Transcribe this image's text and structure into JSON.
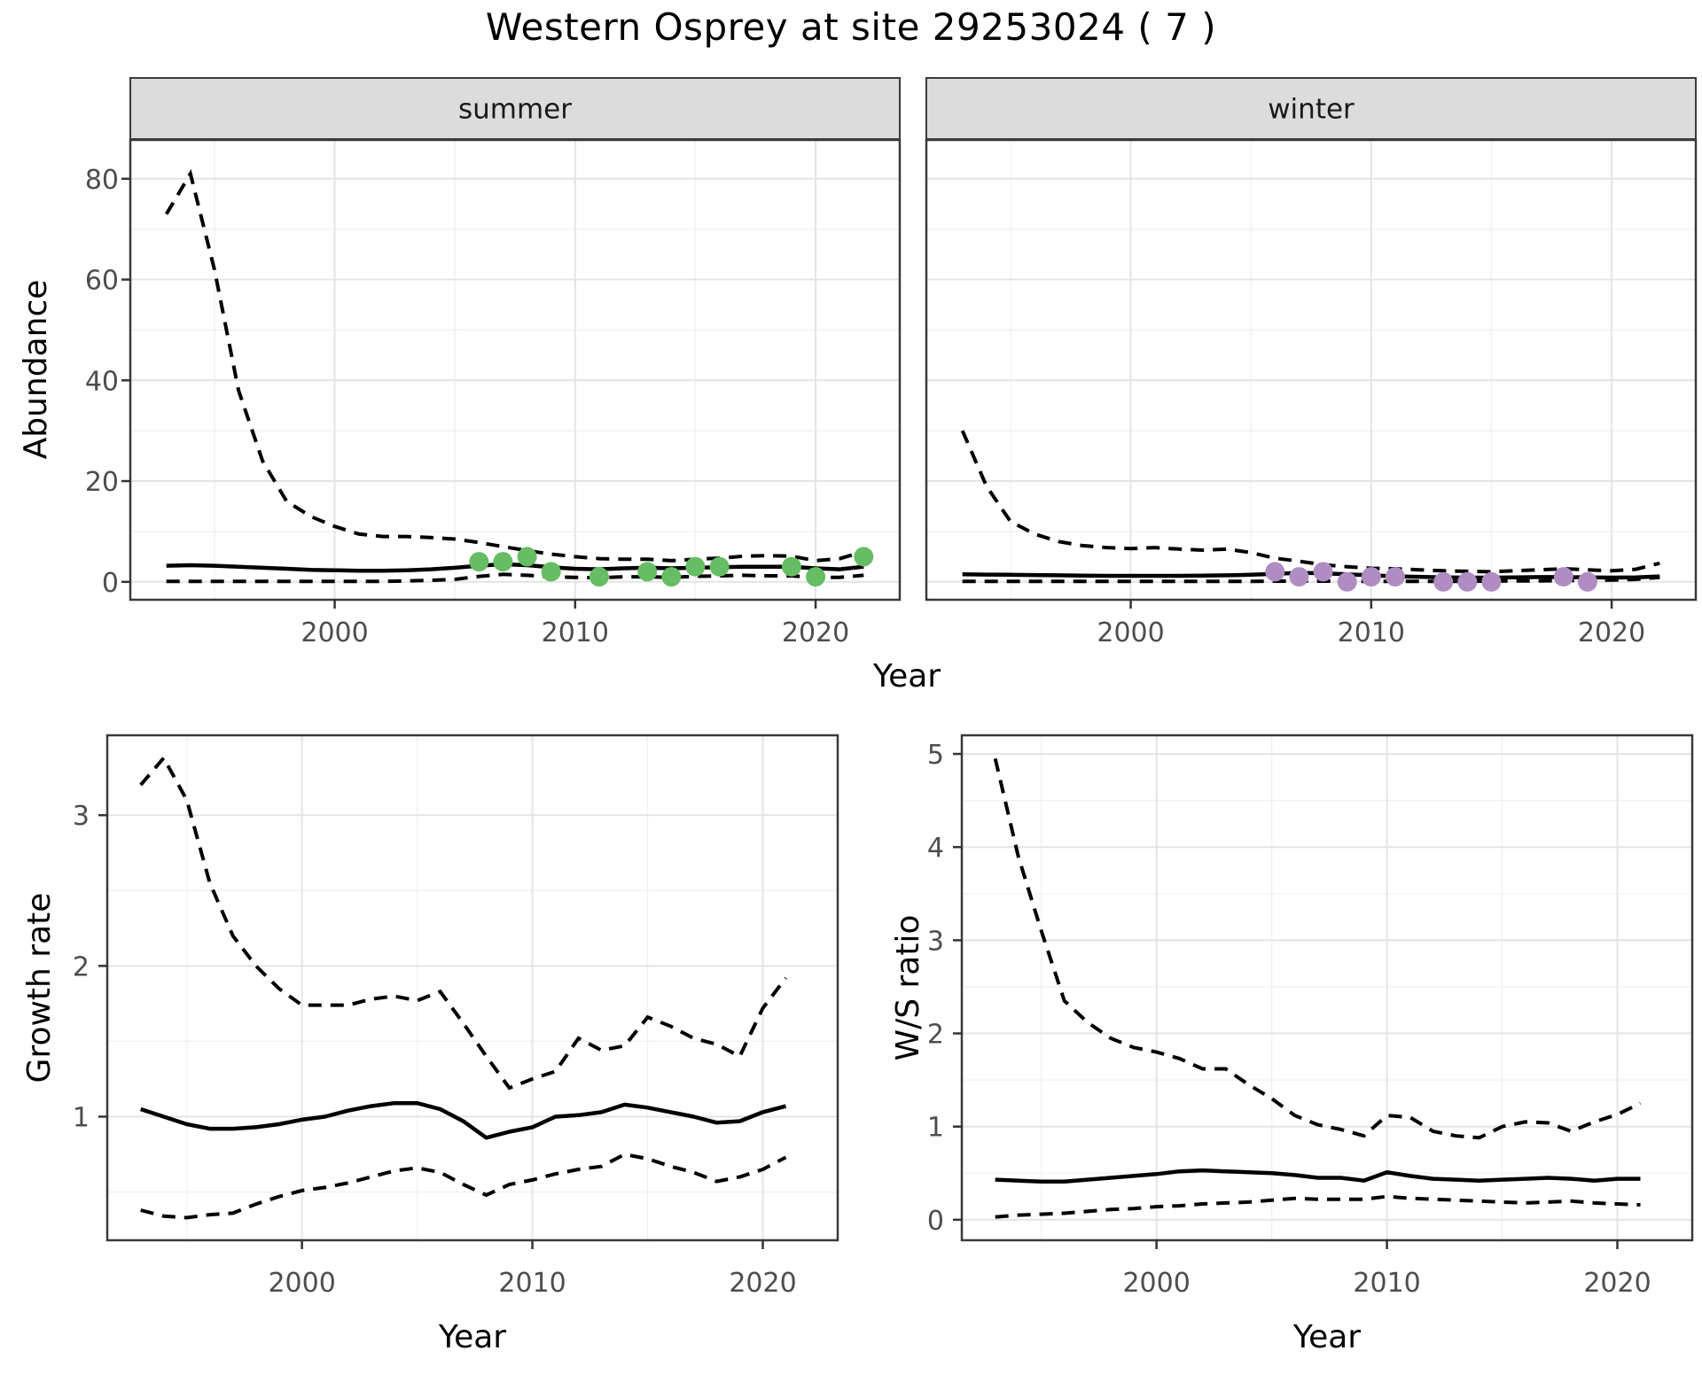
{
  "title": "Western Osprey at site 29253024 ( 7 )",
  "styles": {
    "summer_point_color": "#66BD63",
    "winter_point_color": "#AF8DC3",
    "line_color": "#000000",
    "grid_major_color": "#E4E4E4",
    "grid_minor_color": "#F0F0F0",
    "strip_fill": "#DCDCDC",
    "strip_border_color": "#3A3A3A",
    "panel_border_color": "#3A3A3A",
    "tick_mark_color": "#333333",
    "tick_label_color": "#4D4D4D",
    "axis_title_color": "#000000",
    "strip_text_color": "#1A1A1A"
  },
  "chart_data": [
    {
      "id": "abundance",
      "type": "line",
      "title": "Western Osprey at site 29253024 ( 7 )",
      "xlabel": "Year",
      "ylabel": "Abundance",
      "xlim": [
        1991.5,
        2023.5
      ],
      "ylim": [
        -3.55,
        87.7
      ],
      "x_ticks": [
        2000,
        2010,
        2020
      ],
      "x_minor": [
        1995,
        2005,
        2015
      ],
      "y_ticks": [
        0,
        20,
        40,
        60,
        80
      ],
      "y_minor": [
        10,
        30,
        50,
        70
      ],
      "grid": true,
      "legend": "none",
      "years": [
        1993,
        1994,
        1995,
        1996,
        1997,
        1998,
        1999,
        2000,
        2001,
        2002,
        2003,
        2004,
        2005,
        2006,
        2007,
        2008,
        2009,
        2010,
        2011,
        2012,
        2013,
        2014,
        2015,
        2016,
        2017,
        2018,
        2019,
        2020,
        2021,
        2022
      ],
      "facets": [
        {
          "label": "summer",
          "point_color": "#66BD63",
          "median": [
            3.2,
            3.3,
            3.2,
            3.0,
            2.8,
            2.6,
            2.4,
            2.3,
            2.2,
            2.2,
            2.3,
            2.5,
            2.8,
            3.2,
            3.5,
            3.3,
            2.9,
            2.6,
            2.5,
            2.7,
            2.8,
            2.7,
            2.8,
            2.9,
            3.0,
            3.0,
            3.0,
            2.7,
            2.5,
            3.0
          ],
          "upper": [
            73,
            81,
            62,
            38,
            24,
            16,
            13,
            11,
            9.5,
            9,
            9,
            8.8,
            8.5,
            7.8,
            7.0,
            6.2,
            5.5,
            5.0,
            4.6,
            4.5,
            4.5,
            4.2,
            4.5,
            4.7,
            5.1,
            5.2,
            5.1,
            4.2,
            4.6,
            6.0
          ],
          "lower": [
            0.1,
            0.1,
            0.1,
            0.1,
            0.1,
            0.1,
            0.1,
            0.1,
            0.1,
            0.1,
            0.2,
            0.3,
            0.5,
            1.1,
            1.5,
            1.3,
            1.0,
            0.9,
            0.8,
            1.0,
            1.0,
            0.9,
            1.1,
            1.2,
            1.3,
            1.2,
            1.2,
            0.9,
            0.9,
            1.3
          ],
          "obs_years": [
            2006,
            2007,
            2008,
            2009,
            2011,
            2013,
            2014,
            2015,
            2016,
            2019,
            2020,
            2022
          ],
          "obs_values": [
            4,
            4,
            5,
            2,
            1,
            2,
            1,
            3,
            3,
            3,
            1,
            5
          ]
        },
        {
          "label": "winter",
          "point_color": "#AF8DC3",
          "median": [
            1.5,
            1.45,
            1.4,
            1.35,
            1.3,
            1.25,
            1.2,
            1.2,
            1.2,
            1.2,
            1.25,
            1.3,
            1.4,
            1.6,
            1.8,
            1.7,
            1.5,
            1.3,
            1.1,
            1.0,
            0.9,
            0.85,
            0.85,
            0.9,
            0.95,
            0.95,
            0.9,
            0.85,
            0.9,
            1.1
          ],
          "upper": [
            30,
            19,
            12,
            9.5,
            8,
            7.2,
            6.8,
            6.6,
            6.8,
            6.5,
            6.3,
            6.5,
            5.8,
            4.7,
            4.1,
            3.4,
            3.0,
            2.7,
            2.6,
            2.4,
            2.2,
            2.1,
            2.0,
            2.2,
            2.4,
            2.6,
            2.4,
            2.2,
            2.5,
            3.7
          ],
          "lower": [
            0.1,
            0.1,
            0.1,
            0.1,
            0.1,
            0.1,
            0.1,
            0.1,
            0.1,
            0.1,
            0.1,
            0.1,
            0.1,
            0.15,
            0.15,
            0.15,
            0.1,
            0.1,
            0.1,
            0.1,
            0.1,
            0.1,
            0.15,
            0.2,
            0.2,
            0.25,
            0.3,
            0.35,
            0.5,
            0.9
          ],
          "obs_years": [
            2006,
            2007,
            2008,
            2009,
            2010,
            2011,
            2013,
            2014,
            2015,
            2018,
            2019
          ],
          "obs_values": [
            2,
            1,
            2,
            0,
            1,
            1,
            0,
            0,
            0,
            1,
            0
          ]
        }
      ]
    },
    {
      "id": "growth_rate",
      "type": "line",
      "xlabel": "Year",
      "ylabel": "Growth rate",
      "xlim": [
        1991.55,
        2023.25
      ],
      "ylim": [
        0.18,
        3.53
      ],
      "x_ticks": [
        2000,
        2010,
        2020
      ],
      "x_minor": [
        1995,
        2005,
        2015
      ],
      "y_ticks": [
        1,
        2,
        3
      ],
      "y_minor": [
        0.5,
        1.5,
        2.5,
        3.5
      ],
      "grid": true,
      "legend": "none",
      "years": [
        1993,
        1994,
        1995,
        1996,
        1997,
        1998,
        1999,
        2000,
        2001,
        2002,
        2003,
        2004,
        2005,
        2006,
        2007,
        2008,
        2009,
        2010,
        2011,
        2012,
        2013,
        2014,
        2015,
        2016,
        2017,
        2018,
        2019,
        2020,
        2021
      ],
      "median": [
        1.05,
        1.0,
        0.95,
        0.92,
        0.92,
        0.93,
        0.95,
        0.98,
        1.0,
        1.04,
        1.07,
        1.09,
        1.09,
        1.05,
        0.97,
        0.86,
        0.9,
        0.93,
        1.0,
        1.01,
        1.03,
        1.08,
        1.06,
        1.03,
        1.0,
        0.96,
        0.97,
        1.03,
        1.07
      ],
      "upper": [
        3.2,
        3.38,
        3.1,
        2.55,
        2.2,
        2.0,
        1.85,
        1.74,
        1.74,
        1.74,
        1.78,
        1.8,
        1.77,
        1.83,
        1.62,
        1.4,
        1.19,
        1.25,
        1.3,
        1.52,
        1.44,
        1.47,
        1.66,
        1.6,
        1.52,
        1.48,
        1.4,
        1.72,
        1.92
      ],
      "lower": [
        0.38,
        0.34,
        0.33,
        0.35,
        0.36,
        0.42,
        0.47,
        0.51,
        0.53,
        0.56,
        0.6,
        0.64,
        0.66,
        0.63,
        0.55,
        0.48,
        0.55,
        0.58,
        0.62,
        0.65,
        0.67,
        0.75,
        0.72,
        0.67,
        0.63,
        0.57,
        0.6,
        0.65,
        0.73
      ]
    },
    {
      "id": "ws_ratio",
      "type": "line",
      "xlabel": "Year",
      "ylabel": "W/S ratio",
      "xlim": [
        1991.55,
        2023.25
      ],
      "ylim": [
        -0.22,
        5.2
      ],
      "x_ticks": [
        2000,
        2010,
        2020
      ],
      "x_minor": [
        1995,
        2005,
        2015
      ],
      "y_ticks": [
        0,
        1,
        2,
        3,
        4,
        5
      ],
      "y_minor": [
        0.5,
        1.5,
        2.5,
        3.5,
        4.5
      ],
      "grid": true,
      "legend": "none",
      "years": [
        1993,
        1994,
        1995,
        1996,
        1997,
        1998,
        1999,
        2000,
        2001,
        2002,
        2003,
        2004,
        2005,
        2006,
        2007,
        2008,
        2009,
        2010,
        2011,
        2012,
        2013,
        2014,
        2015,
        2016,
        2017,
        2018,
        2019,
        2020,
        2021
      ],
      "median": [
        0.43,
        0.42,
        0.41,
        0.41,
        0.43,
        0.45,
        0.47,
        0.49,
        0.52,
        0.53,
        0.52,
        0.51,
        0.5,
        0.48,
        0.45,
        0.45,
        0.42,
        0.51,
        0.47,
        0.44,
        0.43,
        0.42,
        0.43,
        0.44,
        0.45,
        0.44,
        0.42,
        0.44,
        0.44
      ],
      "upper": [
        4.95,
        3.9,
        3.1,
        2.35,
        2.12,
        1.95,
        1.85,
        1.8,
        1.73,
        1.62,
        1.62,
        1.45,
        1.3,
        1.12,
        1.02,
        0.97,
        0.9,
        1.12,
        1.1,
        0.95,
        0.9,
        0.88,
        1.0,
        1.05,
        1.04,
        0.95,
        1.05,
        1.13,
        1.25
      ],
      "lower": [
        0.03,
        0.05,
        0.06,
        0.07,
        0.09,
        0.11,
        0.12,
        0.14,
        0.15,
        0.17,
        0.18,
        0.19,
        0.21,
        0.23,
        0.22,
        0.22,
        0.22,
        0.25,
        0.23,
        0.22,
        0.21,
        0.2,
        0.19,
        0.18,
        0.19,
        0.2,
        0.18,
        0.17,
        0.16
      ]
    }
  ]
}
